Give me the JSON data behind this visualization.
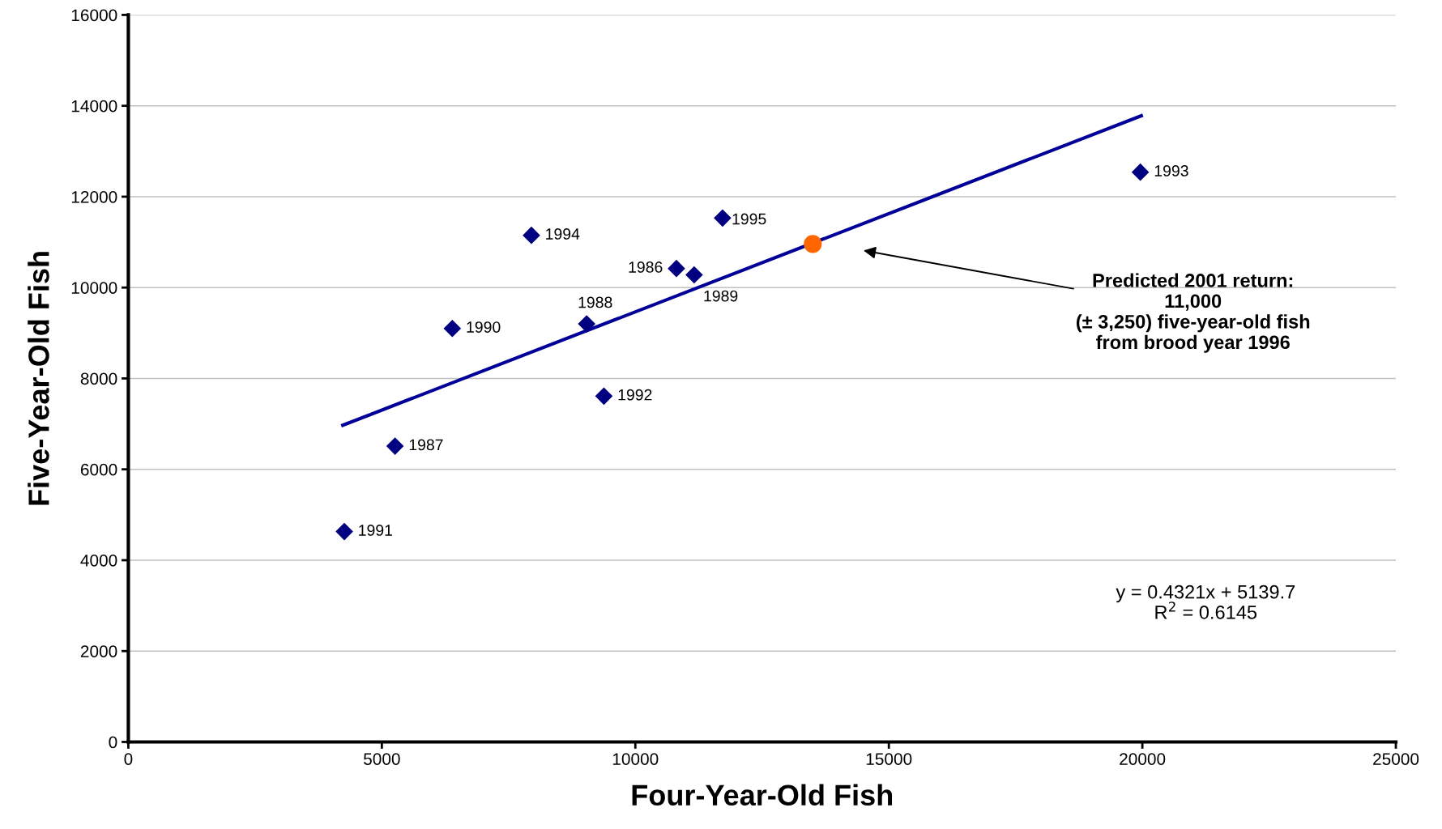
{
  "chart_data": {
    "type": "scatter",
    "xlabel": "Four-Year-Old Fish",
    "ylabel": "Five-Year-Old Fish",
    "xlim": [
      0,
      25000
    ],
    "xticks": [
      0,
      5000,
      10000,
      15000,
      20000,
      25000
    ],
    "ylim": [
      0,
      16000
    ],
    "yticks": [
      0,
      2000,
      4000,
      6000,
      8000,
      10000,
      12000,
      14000,
      16000
    ],
    "grid": "y",
    "legend": false,
    "series": [
      {
        "marker": "diamond",
        "color": "#000080",
        "x": [
          4260,
          5260,
          6390,
          7950,
          9040,
          9380,
          10810,
          11160,
          11720,
          19960
        ],
        "values": [
          4630,
          6510,
          9100,
          11150,
          9200,
          7610,
          10420,
          10280,
          11530,
          12540
        ]
      },
      {
        "type": "line",
        "color": "#000099",
        "x": [
          4230,
          19980
        ],
        "values": [
          6970,
          13780
        ]
      },
      {
        "marker": "circle",
        "color": "#ff6600",
        "x": [
          13500
        ],
        "values": [
          10960
        ]
      }
    ],
    "annotations": [
      "Predicted 2001 return:\n11,000\n(± 3,250) five-year-old fish\nfrom brood year 1996",
      "y = 0.4321x + 5139.7\nR$^{2}$ = 0.6145",
      {
        "text": "1991",
        "x": 4260,
        "y": 4630
      },
      {
        "text": "1987",
        "x": 5260,
        "y": 6510
      },
      {
        "text": "1990",
        "x": 6390,
        "y": 9100
      },
      {
        "text": "1994",
        "x": 7950,
        "y": 11150
      },
      {
        "text": "1988",
        "x": 9040,
        "y": 9200
      },
      {
        "text": "1992",
        "x": 9380,
        "y": 7610
      },
      {
        "text": "1986",
        "x": 10810,
        "y": 10420
      },
      {
        "text": "1989",
        "x": 11160,
        "y": 10280
      },
      {
        "text": "1995",
        "x": 11720,
        "y": 11530
      },
      {
        "text": "1993",
        "x": 19960,
        "y": 12540
      }
    ]
  }
}
